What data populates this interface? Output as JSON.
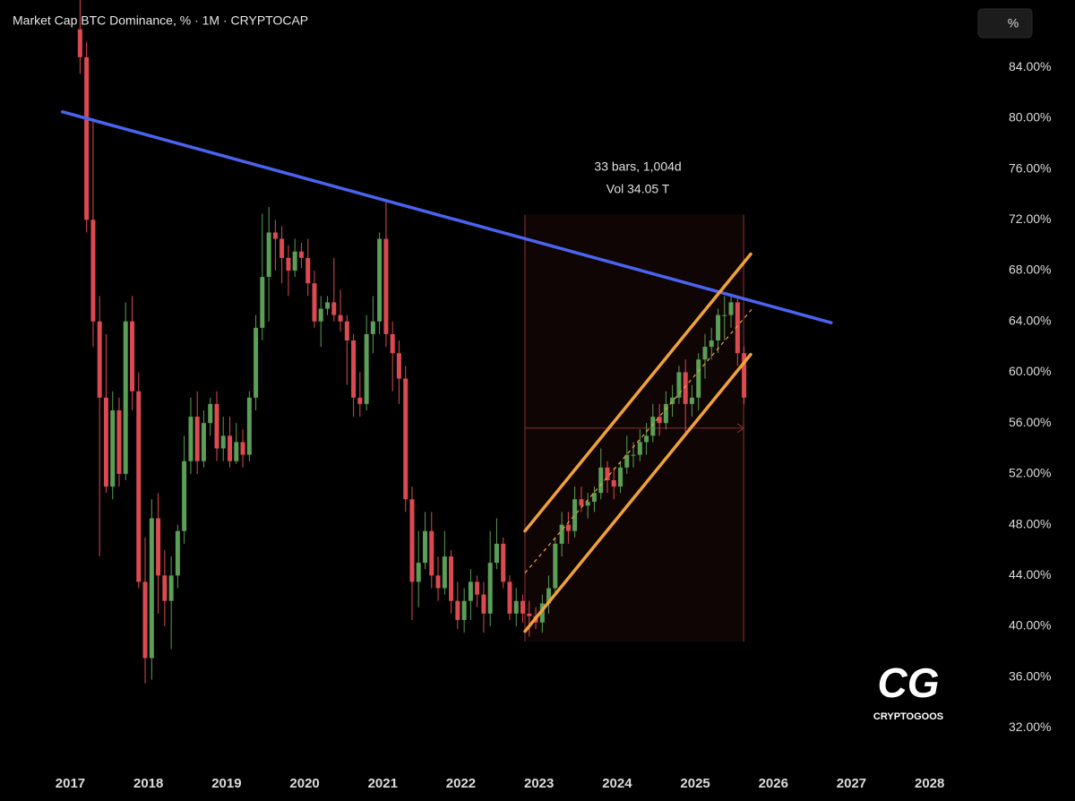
{
  "chart_data": {
    "type": "candlestick",
    "title": "Market Cap BTC Dominance, % · 1M · CRYPTOCAP",
    "scale_button": "%",
    "up_color": "#5a9e57",
    "down_color": "#dc4a51",
    "xlim": [
      2016.1,
      2028.6
    ],
    "ylim": [
      29,
      89.3
    ],
    "xticks": [
      2017,
      2018,
      2019,
      2020,
      2021,
      2022,
      2023,
      2024,
      2025,
      2026,
      2027,
      2028
    ],
    "yticks": [
      {
        "value": 32,
        "label": "32.00%"
      },
      {
        "value": 36,
        "label": "36.00%"
      },
      {
        "value": 40,
        "label": "40.00%"
      },
      {
        "value": 44,
        "label": "44.00%"
      },
      {
        "value": 48,
        "label": "48.00%"
      },
      {
        "value": 52,
        "label": "52.00%"
      },
      {
        "value": 56,
        "label": "56.00%"
      },
      {
        "value": 60,
        "label": "60.00%"
      },
      {
        "value": 64,
        "label": "64.00%"
      },
      {
        "value": 68,
        "label": "68.00%"
      },
      {
        "value": 72,
        "label": "72.00%"
      },
      {
        "value": 76,
        "label": "76.00%"
      },
      {
        "value": 80,
        "label": "80.00%"
      },
      {
        "value": 84,
        "label": "84.00%"
      }
    ],
    "x": [
      2017.125,
      2017.208,
      2017.292,
      2017.375,
      2017.458,
      2017.542,
      2017.625,
      2017.708,
      2017.792,
      2017.875,
      2017.958,
      2018.042,
      2018.125,
      2018.208,
      2018.292,
      2018.375,
      2018.458,
      2018.542,
      2018.625,
      2018.708,
      2018.792,
      2018.875,
      2018.958,
      2019.042,
      2019.125,
      2019.208,
      2019.292,
      2019.375,
      2019.458,
      2019.542,
      2019.625,
      2019.708,
      2019.792,
      2019.875,
      2019.958,
      2020.042,
      2020.125,
      2020.208,
      2020.292,
      2020.375,
      2020.458,
      2020.542,
      2020.625,
      2020.708,
      2020.792,
      2020.875,
      2020.958,
      2021.042,
      2021.125,
      2021.208,
      2021.292,
      2021.375,
      2021.458,
      2021.542,
      2021.625,
      2021.708,
      2021.792,
      2021.875,
      2021.958,
      2022.042,
      2022.125,
      2022.208,
      2022.292,
      2022.375,
      2022.458,
      2022.542,
      2022.625,
      2022.708,
      2022.792,
      2022.875,
      2022.958,
      2023.042,
      2023.125,
      2023.208,
      2023.292,
      2023.375,
      2023.458,
      2023.542,
      2023.625,
      2023.708,
      2023.792,
      2023.875,
      2023.958,
      2024.042,
      2024.125,
      2024.208,
      2024.292,
      2024.375,
      2024.458,
      2024.542,
      2024.625,
      2024.708,
      2024.792,
      2024.875,
      2024.958,
      2025.042,
      2025.125,
      2025.208,
      2025.292,
      2025.375,
      2025.458,
      2025.542,
      2025.625
    ],
    "open": [
      87,
      84.8,
      72,
      64,
      58,
      51,
      57,
      52,
      64,
      58.5,
      43.5,
      37.5,
      48.5,
      44,
      42,
      44,
      47.5,
      53,
      56.5,
      53,
      56,
      57.5,
      54,
      55,
      53,
      54.5,
      53.5,
      58,
      63.5,
      67.5,
      71,
      70.5,
      69,
      68,
      69.5,
      69,
      67,
      64,
      65,
      65.5,
      64.5,
      64,
      62.5,
      58,
      57.5,
      63,
      64,
      70.5,
      63,
      61.5,
      59.5,
      50,
      43.5,
      45,
      47.5,
      44,
      43,
      45.5,
      42,
      40.5,
      42,
      43.5,
      42.5,
      41,
      45,
      46.5,
      43.5,
      41,
      42,
      41,
      40.8,
      40.3,
      41.8,
      43,
      46.5,
      48,
      47.5,
      50,
      49.5,
      49.8,
      50.5,
      52.5,
      51.5,
      51,
      52.5,
      53.5,
      53.5,
      54.5,
      55,
      56.5,
      56,
      57.5,
      58,
      60,
      57.5,
      58,
      61,
      62,
      62.5,
      64.5,
      64.5,
      65.5,
      61.5
    ],
    "high": [
      89.5,
      86,
      80,
      66,
      63,
      58.5,
      58,
      65.5,
      66,
      60,
      47,
      50,
      50.5,
      46,
      45.5,
      48,
      55,
      58,
      58.5,
      57,
      58,
      58.5,
      56.5,
      56.5,
      56,
      55.5,
      58.5,
      64.5,
      72.5,
      73,
      72,
      71.5,
      70,
      70.5,
      70.2,
      70.5,
      68,
      66,
      66,
      69,
      66.5,
      64.5,
      63,
      60,
      64.5,
      66,
      71,
      73.5,
      64,
      62.5,
      60.5,
      51,
      47.5,
      49,
      49,
      45.5,
      47.5,
      46,
      43.5,
      43,
      44.5,
      44,
      43.5,
      47.5,
      48.5,
      47,
      44,
      43,
      42.5,
      42,
      41.5,
      42.5,
      44,
      47,
      49,
      49,
      51,
      51,
      50.5,
      51,
      54,
      53,
      52.5,
      53,
      55,
      54.5,
      55.5,
      56,
      57.5,
      57.5,
      58.5,
      59,
      60.5,
      61,
      59,
      61.5,
      63,
      63.5,
      65,
      66,
      66,
      66,
      62
    ],
    "low": [
      83.5,
      71,
      62,
      45.5,
      50.5,
      50,
      51,
      51.5,
      57,
      43,
      35.5,
      35.8,
      41,
      40,
      38.2,
      43,
      46.5,
      52,
      52,
      52.5,
      55,
      53,
      53,
      52.5,
      52.8,
      52.5,
      53,
      57,
      62.5,
      64,
      68,
      67,
      66,
      67.5,
      68.2,
      66,
      63.5,
      62,
      64.5,
      64,
      63.2,
      59,
      56.5,
      56.5,
      57,
      61.5,
      63,
      62,
      58.5,
      57.5,
      49,
      40.5,
      41.5,
      44.5,
      43,
      42,
      42.5,
      41,
      39.8,
      39.5,
      40.5,
      41.5,
      39.5,
      40,
      44.5,
      43,
      40.5,
      40,
      40.3,
      39.2,
      39.8,
      39.5,
      41,
      42.5,
      45.5,
      46.5,
      47,
      49,
      48.5,
      49,
      50,
      50.5,
      50,
      50.5,
      52,
      52.5,
      53,
      53.5,
      54.5,
      55,
      55.5,
      56.5,
      57.5,
      55,
      56.5,
      57,
      59.5,
      61,
      61.5,
      62.5,
      63.5,
      60.5,
      57.5
    ],
    "close": [
      84.8,
      72,
      64,
      58,
      51,
      57,
      52,
      64,
      58.5,
      43.5,
      37.5,
      48.5,
      44,
      42,
      44,
      47.5,
      53,
      56.5,
      53,
      56,
      57.5,
      54,
      55,
      53,
      54.5,
      53.5,
      58,
      63.5,
      67.5,
      71,
      70.5,
      69,
      68,
      69.5,
      69,
      67,
      64,
      65,
      65.5,
      64.5,
      64,
      62.5,
      58,
      57.5,
      63,
      64,
      70.5,
      63,
      61.5,
      59.5,
      50,
      43.5,
      45,
      47.5,
      44,
      43,
      45.5,
      42,
      40.5,
      42,
      43.5,
      42.5,
      41,
      45,
      46.5,
      43.5,
      41,
      42,
      41,
      40.8,
      40.3,
      41.8,
      43,
      46.5,
      48,
      47.5,
      50,
      49.5,
      49.8,
      50.5,
      52.5,
      51.5,
      51,
      52.5,
      53.5,
      53.5,
      54.5,
      55,
      56.5,
      56,
      57.5,
      58,
      60,
      57.5,
      58,
      61,
      62,
      62.5,
      64.5,
      64.5,
      65.5,
      61.5,
      58
    ],
    "trendlines": [
      {
        "color": "#4a64f0",
        "points": [
          [
            2016.9,
            80.5
          ],
          [
            2026.74,
            63.9
          ]
        ]
      },
      {
        "color": "#f0a23a",
        "points": [
          [
            2022.82,
            47.5
          ],
          [
            2025.71,
            69.3
          ]
        ]
      },
      {
        "color": "#f0a23a",
        "points": [
          [
            2022.82,
            39.6
          ],
          [
            2025.71,
            61.4
          ]
        ]
      }
    ],
    "midline": {
      "color": "#f0a23a",
      "points": [
        [
          2022.82,
          44.2
        ],
        [
          2025.73,
          65.0
        ]
      ]
    },
    "measure": {
      "color": "#7a2b2b",
      "x": [
        2022.82,
        2025.62
      ],
      "y": [
        38.8,
        72.4
      ],
      "level": 55.6,
      "label": "33 bars, 1,004d",
      "volume": "Vol 34.05 T"
    },
    "logo": {
      "mark": "CG",
      "name": "CRYPTOGOOS"
    }
  }
}
